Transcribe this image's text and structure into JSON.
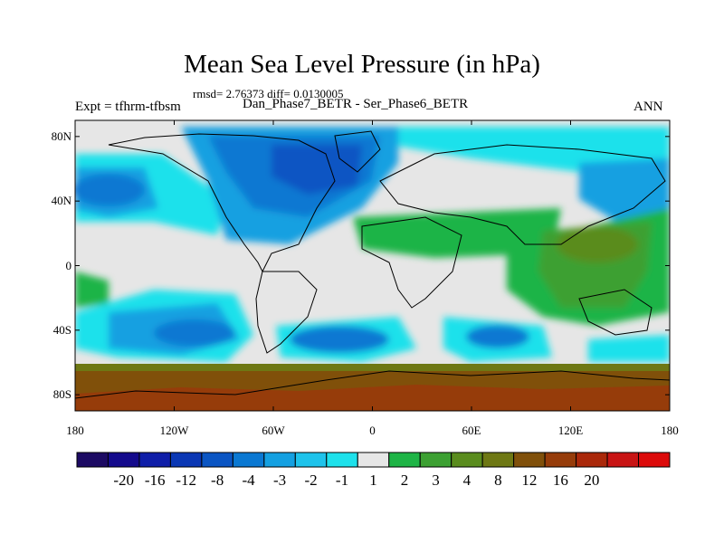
{
  "title": "Mean Sea Level Pressure (in hPa)",
  "stats": "rmsd= 2.76373 diff= 0.0130005",
  "experiment": "Expt = tfhrm-tfbsm",
  "cases": "Dan_Phase7_BETR - Ser_Phase6_BETR",
  "season": "ANN",
  "colors": {
    "ocean_background": "#e6e6e6",
    "coastline": "#000000"
  },
  "map": {
    "projection": "cylindrical-equidistant",
    "lon_range": [
      -180,
      180
    ],
    "lat_range": [
      -90,
      90
    ],
    "y_ticks": [
      {
        "lat": 80,
        "label": "80N"
      },
      {
        "lat": 40,
        "label": "40N"
      },
      {
        "lat": 0,
        "label": "0"
      },
      {
        "lat": -40,
        "label": "40S"
      },
      {
        "lat": -80,
        "label": "80S"
      }
    ],
    "x_ticks": [
      {
        "lon": -180,
        "label": "180"
      },
      {
        "lon": -120,
        "label": "120W"
      },
      {
        "lon": -60,
        "label": "60W"
      },
      {
        "lon": 0,
        "label": "0"
      },
      {
        "lon": 60,
        "label": "60E"
      },
      {
        "lon": 120,
        "label": "120E"
      },
      {
        "lon": 180,
        "label": "180"
      }
    ]
  },
  "colorbar": {
    "colors": [
      "#1c0a63",
      "#140a8c",
      "#0f1ea8",
      "#0a37b4",
      "#0a55c3",
      "#0a78d2",
      "#14a0e1",
      "#1ec3eb",
      "#1ee1eb",
      "#e6e6e6",
      "#1eb446",
      "#3ca032",
      "#5a8c1e",
      "#6e7814",
      "#80500a",
      "#963c0a",
      "#aa280a",
      "#c81414",
      "#dc0a0a"
    ],
    "labels": [
      "-20",
      "-16",
      "-12",
      "-8",
      "-4",
      "-3",
      "-2",
      "-1",
      "1",
      "2",
      "3",
      "4",
      "8",
      "12",
      "16",
      "20"
    ]
  },
  "chart_data": {
    "type": "heatmap",
    "title": "Mean Sea Level Pressure (in hPa)",
    "units": "hPa",
    "contour_levels": [
      -20,
      -16,
      -12,
      -8,
      -4,
      -3,
      -2,
      -1,
      1,
      2,
      3,
      4,
      8,
      12,
      16,
      20
    ],
    "x": {
      "name": "longitude",
      "range": [
        -180,
        180
      ]
    },
    "y": {
      "name": "latitude",
      "range": [
        -90,
        90
      ]
    },
    "regions": [
      {
        "name": "antarctic-high",
        "lon": [
          -180,
          180
        ],
        "lat": [
          -90,
          -58
        ],
        "value": 10
      },
      {
        "name": "antarctic-core-high",
        "lon": [
          -180,
          180
        ],
        "lat": [
          -90,
          -68
        ],
        "value": 12
      },
      {
        "name": "north-pacific-low",
        "lon": [
          -175,
          -135
        ],
        "lat": [
          38,
          50
        ],
        "value": -6
      },
      {
        "name": "north-atlantic-low",
        "lon": [
          -60,
          0
        ],
        "lat": [
          45,
          75
        ],
        "value": -6
      },
      {
        "name": "north-atlantic-deep-low",
        "lon": [
          -30,
          -10
        ],
        "lat": [
          55,
          68
        ],
        "value": -10
      },
      {
        "name": "arctic-low",
        "lon": [
          -140,
          40
        ],
        "lat": [
          65,
          90
        ],
        "value": -2
      },
      {
        "name": "southern-ocean-low-pacific",
        "lon": [
          -160,
          -110
        ],
        "lat": [
          -50,
          -30
        ],
        "value": -5
      },
      {
        "name": "southern-ocean-low-atlantic",
        "lon": [
          -50,
          10
        ],
        "lat": [
          -48,
          -32
        ],
        "value": -5
      },
      {
        "name": "southern-ocean-low-indian",
        "lon": [
          40,
          100
        ],
        "lat": [
          -50,
          -30
        ],
        "value": -4
      },
      {
        "name": "indo-pacific-high",
        "lon": [
          110,
          180
        ],
        "lat": [
          -20,
          20
        ],
        "value": 3
      },
      {
        "name": "indo-pacific-core-high",
        "lon": [
          120,
          150
        ],
        "lat": [
          -10,
          15
        ],
        "value": 4
      },
      {
        "name": "africa-asia-high",
        "lon": [
          -20,
          100
        ],
        "lat": [
          10,
          30
        ],
        "value": 2
      },
      {
        "name": "east-pacific-high",
        "lon": [
          -180,
          -160
        ],
        "lat": [
          -15,
          -5
        ],
        "value": 2
      }
    ]
  }
}
